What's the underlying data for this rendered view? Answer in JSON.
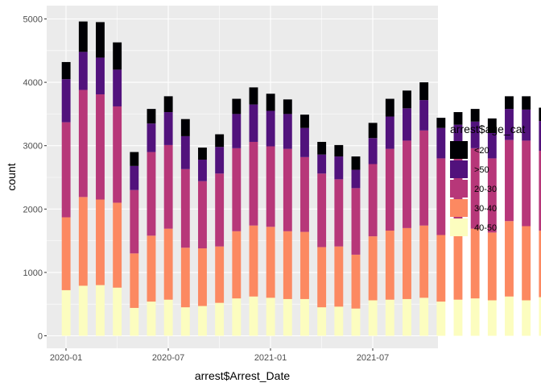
{
  "chart_data": {
    "type": "bar",
    "stacked": true,
    "xlabel": "arrest$Arrest_Date",
    "ylabel": "count",
    "x_ticks": [
      "2020-01",
      "2020-07",
      "2021-01",
      "2021-07"
    ],
    "y_ticks": [
      0,
      1000,
      2000,
      3000,
      4000,
      5000
    ],
    "ylim": [
      -150,
      5150
    ],
    "grid": true,
    "legend": {
      "title": "arrest$age_cat",
      "placement": "right",
      "entries": [
        "<20",
        ">50",
        "20-30",
        "30-40",
        "40-50"
      ]
    },
    "colors": {
      "<20": "#000004",
      ">50": "#51127c",
      "20-30": "#b73779",
      "30-40": "#fc8961",
      "40-50": "#fcfdbf"
    },
    "categories": [
      "2020-01",
      "2020-02",
      "2020-03",
      "2020-04",
      "2020-05",
      "2020-06",
      "2020-07",
      "2020-08",
      "2020-09",
      "2020-10",
      "2020-11",
      "2020-12",
      "2021-01",
      "2021-02",
      "2021-03",
      "2021-04",
      "2021-05",
      "2021-06",
      "2021-07",
      "2021-08",
      "2021-09"
    ],
    "bins": [
      {
        "x": 0.0,
        "a": 720,
        "b": 1870,
        "c": 3370,
        "d": 4050,
        "e": 4320
      },
      {
        "x": 0.5,
        "a": 790,
        "b": 2190,
        "c": 3880,
        "d": 4480,
        "e": 4960
      },
      {
        "x": 1.0,
        "a": 800,
        "b": 2150,
        "c": 3810,
        "d": 4390,
        "e": 4950
      },
      {
        "x": 1.5,
        "a": 760,
        "b": 2100,
        "c": 3620,
        "d": 4200,
        "e": 4630
      },
      {
        "x": 2.0,
        "a": 440,
        "b": 1300,
        "c": 2300,
        "d": 2680,
        "e": 2900
      },
      {
        "x": 2.5,
        "a": 540,
        "b": 1580,
        "c": 2900,
        "d": 3350,
        "e": 3580
      },
      {
        "x": 3.0,
        "a": 570,
        "b": 1690,
        "c": 3010,
        "d": 3530,
        "e": 3780
      },
      {
        "x": 3.5,
        "a": 450,
        "b": 1390,
        "c": 2630,
        "d": 3150,
        "e": 3420
      },
      {
        "x": 4.0,
        "a": 470,
        "b": 1380,
        "c": 2440,
        "d": 2780,
        "e": 2970
      },
      {
        "x": 4.5,
        "a": 520,
        "b": 1410,
        "c": 2560,
        "d": 2980,
        "e": 3180
      },
      {
        "x": 5.0,
        "a": 590,
        "b": 1650,
        "c": 2960,
        "d": 3500,
        "e": 3740
      },
      {
        "x": 5.5,
        "a": 620,
        "b": 1740,
        "c": 3060,
        "d": 3650,
        "e": 3920
      },
      {
        "x": 6.0,
        "a": 600,
        "b": 1720,
        "c": 2990,
        "d": 3550,
        "e": 3820
      },
      {
        "x": 6.5,
        "a": 580,
        "b": 1650,
        "c": 2950,
        "d": 3500,
        "e": 3730
      },
      {
        "x": 7.0,
        "a": 580,
        "b": 1640,
        "c": 2820,
        "d": 3280,
        "e": 3490
      },
      {
        "x": 7.5,
        "a": 450,
        "b": 1400,
        "c": 2560,
        "d": 2860,
        "e": 3060
      },
      {
        "x": 8.0,
        "a": 460,
        "b": 1410,
        "c": 2470,
        "d": 2830,
        "e": 3010
      },
      {
        "x": 8.5,
        "a": 430,
        "b": 1280,
        "c": 2330,
        "d": 2620,
        "e": 2830
      },
      {
        "x": 9.0,
        "a": 560,
        "b": 1570,
        "c": 2710,
        "d": 3120,
        "e": 3360
      },
      {
        "x": 9.5,
        "a": 570,
        "b": 1660,
        "c": 2950,
        "d": 3460,
        "e": 3740
      },
      {
        "x": 10.0,
        "a": 580,
        "b": 1700,
        "c": 3080,
        "d": 3590,
        "e": 3870
      },
      {
        "x": 10.5,
        "a": 600,
        "b": 1740,
        "c": 3240,
        "d": 3720,
        "e": 4000
      },
      {
        "x": 11.0,
        "a": 540,
        "b": 1590,
        "c": 2800,
        "d": 3280,
        "e": 3440
      },
      {
        "x": 11.5,
        "a": 570,
        "b": 1610,
        "c": 2900,
        "d": 3330,
        "e": 3530
      },
      {
        "x": 12.0,
        "a": 590,
        "b": 1690,
        "c": 2960,
        "d": 3380,
        "e": 3580
      },
      {
        "x": 12.5,
        "a": 560,
        "b": 1630,
        "c": 2800,
        "d": 3200,
        "e": 3430
      },
      {
        "x": 13.0,
        "a": 620,
        "b": 1810,
        "c": 3090,
        "d": 3580,
        "e": 3780
      },
      {
        "x": 13.5,
        "a": 560,
        "b": 1730,
        "c": 3080,
        "d": 3570,
        "e": 3780
      },
      {
        "x": 14.0,
        "a": 610,
        "b": 1660,
        "c": 2920,
        "d": 3390,
        "e": 3600
      },
      {
        "x": 14.5,
        "a": 70,
        "b": 220,
        "c": 350,
        "d": 430,
        "e": 470
      }
    ],
    "bins_encoding": "cumulative stack tops from bottom: a=40-50, b=30-40, c=20-30, d=>50, e=<20; x in months since 2020-01"
  }
}
